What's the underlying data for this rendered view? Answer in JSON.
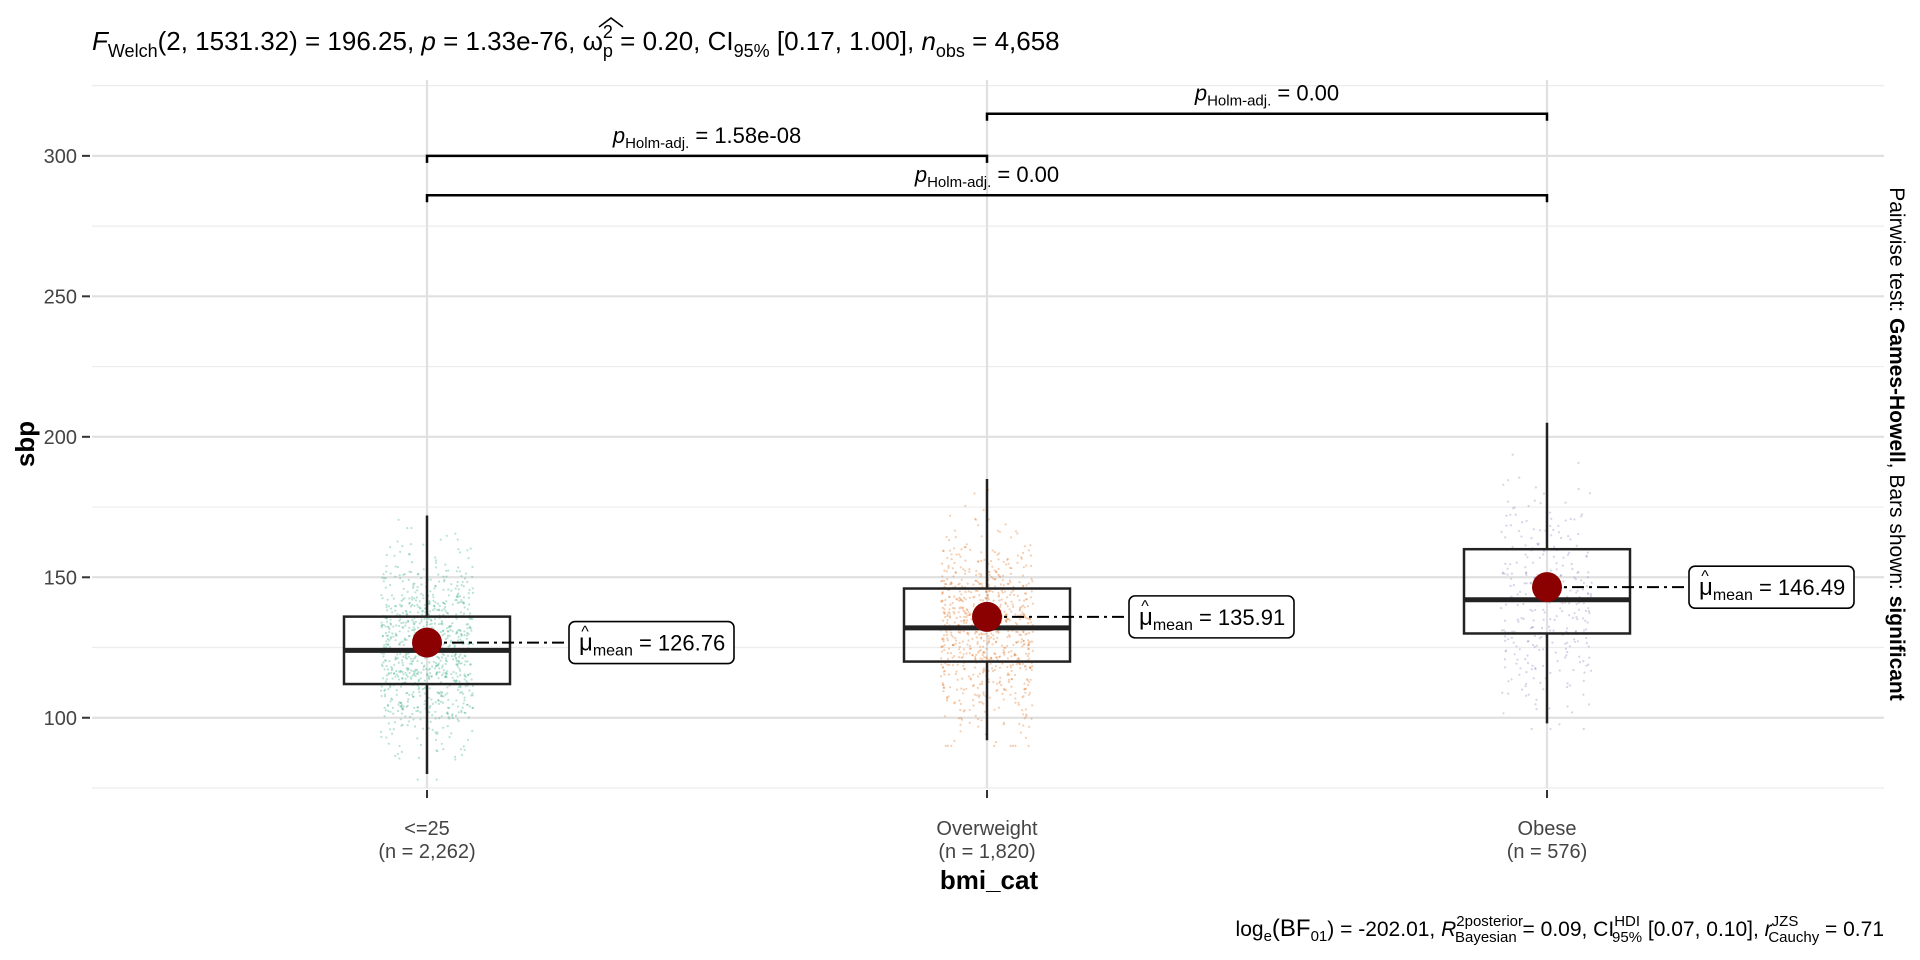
{
  "chart_data": {
    "type": "box",
    "subtitle": {
      "f_sym": "F",
      "f_sub": "Welch",
      "args": "(2, 1531.32) = 196.25, ",
      "p_sym": "p",
      "p_val": " = 1.33e-76, ",
      "omega_sym": "ω",
      "omega_sup": "2",
      "omega_sub": "p",
      "omega_val": " = 0.20, CI",
      "ci_sub": "95%",
      "ci_val": " [0.17, 1.00], ",
      "n_sym": "n",
      "n_sub": "obs",
      "n_val": " = 4,658"
    },
    "caption": {
      "log_txt": "log",
      "log_sub": "e",
      "bf_txt": "(BF",
      "bf_sub": "01",
      "bf_val": ") = -202.01, ",
      "r_sym": "R",
      "r_sup": "2",
      "post_sup": "posterior",
      "bayes_sub": "Bayesian",
      "r_val": " = 0.09, CI",
      "hdi_sup": "HDI",
      "ci_sub": "95%",
      "ci_val": " [0.07, 0.10], ",
      "rc_sym": "r",
      "jzs_sup": "JZS",
      "cauchy_sub": "Cauchy",
      "rc_val": " = 0.71"
    },
    "xlabel": "bmi_cat",
    "ylabel": "sbp",
    "ylim": [
      75,
      327
    ],
    "yticks": [
      100,
      150,
      200,
      250,
      300
    ],
    "grid": true,
    "categories": [
      "<=25",
      "Overweight",
      "Obese"
    ],
    "counts": [
      "(n = 2,262)",
      "(n = 1,820)",
      "(n = 576)"
    ],
    "colors": [
      "#1B9E77",
      "#D95F02",
      "#7570B3"
    ],
    "mean_color": "#8B0000",
    "boxes": [
      {
        "q1": 112,
        "median": 124,
        "q3": 136,
        "whisker_low": 80,
        "whisker_high": 172,
        "mean": 126.76,
        "mean_label": "126.76"
      },
      {
        "q1": 120,
        "median": 132,
        "q3": 146,
        "whisker_low": 92,
        "whisker_high": 185,
        "mean": 135.91,
        "mean_label": "135.91"
      },
      {
        "q1": 130,
        "median": 142,
        "q3": 160,
        "whisker_low": 98,
        "whisker_high": 205,
        "mean": 146.49,
        "mean_label": "146.49"
      }
    ],
    "mean_symbol": "μ",
    "mean_hat": "^",
    "mean_sub": "mean",
    "mean_eq": " = ",
    "comparisons": [
      {
        "from": 0,
        "to": 2,
        "y": 286,
        "p_sym": "p",
        "p_sub": "Holm-adj.",
        "p_val": " = 0.00"
      },
      {
        "from": 0,
        "to": 1,
        "y": 300,
        "p_sym": "p",
        "p_sub": "Holm-adj.",
        "p_val": " = 1.58e-08"
      },
      {
        "from": 1,
        "to": 2,
        "y": 315,
        "p_sym": "p",
        "p_sub": "Holm-adj.",
        "p_val": " = 0.00"
      }
    ],
    "side_note": {
      "prefix": "Pairwise test: ",
      "test": "Games-Howell",
      "middle": ", Bars shown: ",
      "shown": "significant"
    }
  }
}
